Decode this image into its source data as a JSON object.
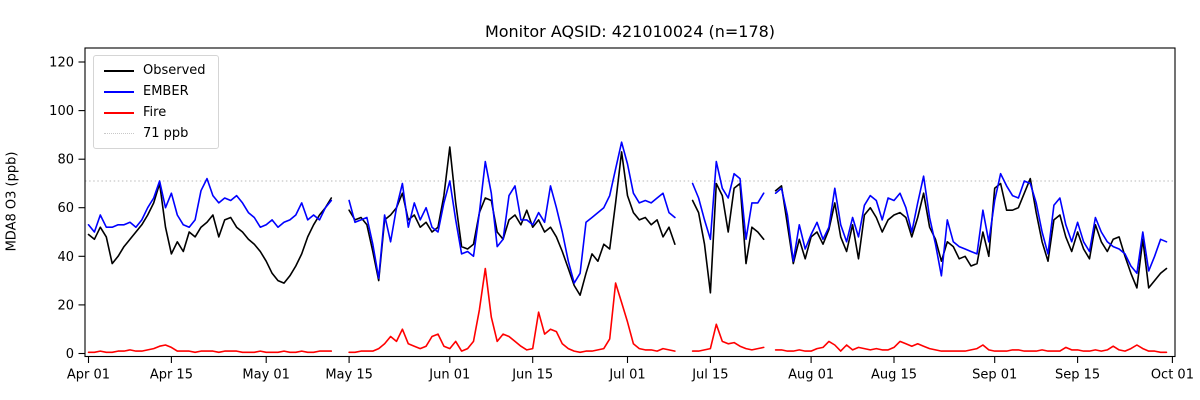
{
  "chart_data": {
    "type": "line",
    "title": "Monitor AQSID: 421010024 (n=178)",
    "xlabel": "",
    "ylabel": "MDA8 O3 (ppb)",
    "n_points": 178,
    "x_start_date": "Apr 01",
    "x_end_date": "Oct 01",
    "x_unit": "day index from Apr 01 (daily cadence, null = missing day)",
    "ylim": [
      0,
      125
    ],
    "grid": false,
    "y_ticks": [
      0,
      20,
      40,
      60,
      80,
      100,
      120
    ],
    "x_ticks": [
      {
        "day": 0,
        "label": "Apr 01"
      },
      {
        "day": 14,
        "label": "Apr 15"
      },
      {
        "day": 30,
        "label": "May 01"
      },
      {
        "day": 44,
        "label": "May 15"
      },
      {
        "day": 61,
        "label": "Jun 01"
      },
      {
        "day": 75,
        "label": "Jun 15"
      },
      {
        "day": 91,
        "label": "Jul 01"
      },
      {
        "day": 105,
        "label": "Jul 15"
      },
      {
        "day": 122,
        "label": "Aug 01"
      },
      {
        "day": 136,
        "label": "Aug 15"
      },
      {
        "day": 153,
        "label": "Sep 01"
      },
      {
        "day": 167,
        "label": "Sep 15"
      },
      {
        "day": 183,
        "label": "Oct 01"
      }
    ],
    "reference_line": {
      "value": 71,
      "label": "71 ppb",
      "color": "#c8c8c8",
      "style": "dotted"
    },
    "series": [
      {
        "name": "Observed",
        "color": "#000000",
        "values": [
          49,
          47,
          52,
          48,
          37,
          40,
          44,
          47,
          50,
          53,
          57,
          62,
          70,
          52,
          41,
          46,
          42,
          50,
          48,
          52,
          54,
          57,
          48,
          55,
          56,
          52,
          50,
          47,
          45,
          42,
          38,
          33,
          30,
          29,
          32,
          36,
          41,
          48,
          53,
          57,
          60,
          64,
          null,
          null,
          59,
          55,
          56,
          53,
          42,
          30,
          55,
          57,
          60,
          66,
          55,
          57,
          52,
          54,
          50,
          52,
          65,
          85,
          62,
          44,
          43,
          45,
          58,
          64,
          63,
          50,
          47,
          55,
          57,
          53,
          59,
          52,
          55,
          50,
          52,
          48,
          42,
          35,
          28,
          24,
          33,
          41,
          38,
          45,
          43,
          62,
          83,
          65,
          58,
          55,
          56,
          53,
          55,
          48,
          52,
          45,
          null,
          null,
          63,
          58,
          45,
          25,
          70,
          65,
          50,
          68,
          70,
          37,
          52,
          50,
          47,
          null,
          67,
          69,
          53,
          37,
          47,
          39,
          48,
          50,
          45,
          51,
          62,
          48,
          42,
          53,
          39,
          57,
          60,
          56,
          50,
          55,
          57,
          58,
          56,
          48,
          56,
          66,
          52,
          47,
          38,
          46,
          44,
          39,
          40,
          36,
          37,
          50,
          40,
          68,
          70,
          59,
          59,
          60,
          66,
          72,
          58,
          46,
          38,
          55,
          57,
          48,
          42,
          50,
          43,
          39,
          53,
          46,
          42,
          47,
          48,
          40,
          33,
          27,
          47,
          27,
          30,
          33,
          35
        ]
      },
      {
        "name": "EMBER",
        "color": "#0000ff",
        "values": [
          53,
          50,
          57,
          52,
          52,
          53,
          53,
          54,
          52,
          55,
          60,
          64,
          71,
          60,
          66,
          57,
          53,
          52,
          55,
          67,
          72,
          65,
          62,
          64,
          63,
          65,
          62,
          58,
          56,
          52,
          53,
          55,
          52,
          54,
          55,
          57,
          62,
          55,
          57,
          55,
          60,
          63,
          null,
          null,
          63,
          54,
          55,
          56,
          45,
          31,
          57,
          46,
          60,
          70,
          52,
          62,
          55,
          60,
          52,
          50,
          62,
          71,
          55,
          41,
          42,
          40,
          58,
          79,
          66,
          44,
          47,
          65,
          69,
          55,
          55,
          53,
          58,
          54,
          69,
          60,
          50,
          38,
          29,
          33,
          54,
          56,
          58,
          60,
          65,
          76,
          87,
          78,
          66,
          62,
          63,
          62,
          64,
          66,
          58,
          56,
          null,
          null,
          70,
          64,
          55,
          47,
          79,
          68,
          64,
          74,
          72,
          47,
          62,
          62,
          66,
          null,
          66,
          68,
          57,
          38,
          53,
          43,
          49,
          54,
          47,
          52,
          68,
          53,
          46,
          56,
          48,
          61,
          65,
          63,
          55,
          64,
          63,
          66,
          60,
          50,
          62,
          73,
          56,
          45,
          32,
          55,
          46,
          44,
          43,
          42,
          41,
          59,
          46,
          63,
          74,
          69,
          65,
          64,
          71,
          70,
          62,
          50,
          41,
          61,
          64,
          53,
          46,
          54,
          46,
          42,
          56,
          50,
          46,
          44,
          43,
          41,
          36,
          33,
          50,
          34,
          40,
          47,
          46
        ]
      },
      {
        "name": "Fire",
        "color": "#ff0000",
        "values": [
          0.5,
          0.5,
          1,
          0.5,
          0.5,
          1,
          1,
          1.5,
          1,
          1,
          1.5,
          2,
          3,
          3.5,
          2.5,
          1,
          1,
          1,
          0.5,
          1,
          1,
          1,
          0.5,
          1,
          1,
          1,
          0.5,
          0.5,
          0.5,
          1,
          0.5,
          0.5,
          0.5,
          1,
          0.5,
          0.5,
          1,
          0.5,
          0.5,
          1,
          1,
          1,
          null,
          null,
          0.5,
          0.5,
          1,
          1,
          1,
          2,
          4,
          7,
          5,
          10,
          4,
          3,
          2,
          3,
          7,
          8,
          3,
          2,
          5,
          1,
          2,
          5,
          18,
          35,
          15,
          5,
          8,
          7,
          5,
          3,
          1.5,
          2,
          17,
          8,
          10,
          9,
          4,
          2,
          1,
          0.5,
          1,
          1,
          1.5,
          2,
          6,
          29,
          21,
          13,
          4,
          2,
          1.5,
          1.5,
          1,
          2,
          1.5,
          1,
          null,
          null,
          1,
          1,
          1.5,
          2,
          12,
          5,
          4,
          4.5,
          3,
          2,
          1.5,
          2,
          2.5,
          null,
          1.5,
          1.5,
          1,
          1,
          1.5,
          1,
          1,
          2,
          2.5,
          5,
          3.5,
          1,
          3.5,
          1.5,
          2.5,
          2,
          1.5,
          2,
          1.5,
          1.5,
          2.5,
          5,
          4,
          3,
          4,
          3,
          2,
          1.5,
          1,
          1,
          1,
          1,
          1,
          1.5,
          2,
          3.5,
          1.5,
          1,
          1,
          1,
          1.5,
          1.5,
          1,
          1,
          1,
          1.5,
          1,
          1,
          1,
          2.5,
          1.5,
          1.5,
          1,
          1,
          1.5,
          1,
          1.5,
          3,
          1.5,
          1,
          2,
          3.5,
          2,
          1,
          1,
          0.5,
          0.5
        ]
      }
    ],
    "missing_days": [
      "May 13",
      "May 14",
      "Jul 10",
      "Jul 11",
      "Jul 25"
    ]
  },
  "legend": {
    "position": "upper left",
    "items": [
      {
        "label": "Observed",
        "color": "#000000",
        "style": "solid"
      },
      {
        "label": "EMBER",
        "color": "#0000ff",
        "style": "solid"
      },
      {
        "label": "Fire",
        "color": "#ff0000",
        "style": "solid"
      },
      {
        "label": "71 ppb",
        "color": "#c8c8c8",
        "style": "dotted"
      }
    ]
  },
  "axes": {
    "spine_color": "#000000",
    "background": "#ffffff"
  }
}
